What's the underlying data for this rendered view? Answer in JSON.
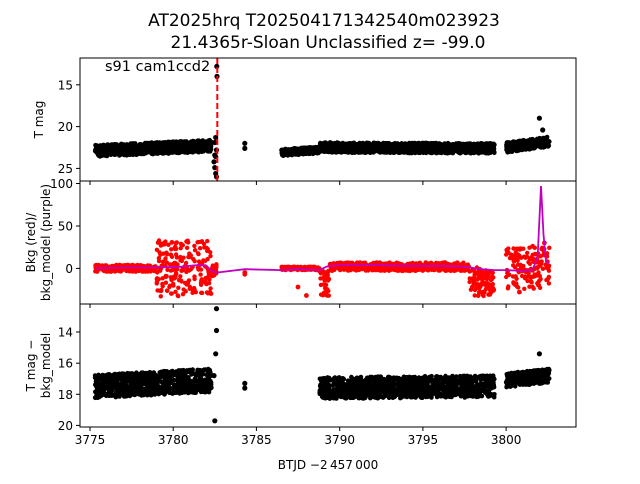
{
  "figure": {
    "title_line1": "AT2025hrq  T202504171342540m023923",
    "title_line2": "21.4365r-Sloan Unclassified z= -99.0",
    "xlabel": "BTJD −2 457 000",
    "x_ticks": [
      3775,
      3780,
      3785,
      3790,
      3795,
      3800
    ],
    "colors": {
      "data": "#000000",
      "background": "#ff0000",
      "model": "#bf00bf",
      "marker_line": "#ff0000"
    }
  },
  "chart_data": [
    {
      "type": "scatter",
      "panel": "top",
      "ylabel": "T mag",
      "y_inverted": true,
      "xlim": [
        3774.4,
        3804.2
      ],
      "ylim": [
        26.5,
        11.8
      ],
      "y_ticks": [
        15,
        20,
        25
      ],
      "annotation": "s91 cam1ccd2",
      "vertical_line_x": 3782.65,
      "segments": [
        {
          "x": [
            3775.3,
            3782.3
          ],
          "y_base": 22.9,
          "y_drift_end": 22.3,
          "y_spread": 1.4
        },
        {
          "x": [
            3786.5,
            3788.8
          ],
          "y_base": 23.1,
          "y_drift_end": 22.8,
          "y_spread": 0.8
        },
        {
          "x": [
            3788.8,
            3799.3
          ],
          "y_base": 22.5,
          "y_drift_end": 22.6,
          "y_spread": 1.2
        },
        {
          "x": [
            3800.0,
            3802.6
          ],
          "y_base": 22.5,
          "y_drift_end": 21.8,
          "y_spread": 1.2
        }
      ],
      "points": [
        {
          "x": 3782.5,
          "y": 21.9
        },
        {
          "x": 3782.55,
          "y": 21.3
        },
        {
          "x": 3782.6,
          "y": 22.8
        },
        {
          "x": 3782.45,
          "y": 24.2
        },
        {
          "x": 3782.5,
          "y": 24.9
        },
        {
          "x": 3782.55,
          "y": 25.6
        },
        {
          "x": 3782.6,
          "y": 26.0
        },
        {
          "x": 3782.5,
          "y": 23.4
        },
        {
          "x": 3782.55,
          "y": 23.6
        },
        {
          "x": 3782.62,
          "y": 12.8
        },
        {
          "x": 3782.63,
          "y": 14.0
        },
        {
          "x": 3784.3,
          "y": 22.0
        },
        {
          "x": 3784.3,
          "y": 22.6
        },
        {
          "x": 3802.0,
          "y": 19.0
        },
        {
          "x": 3802.2,
          "y": 20.4
        }
      ]
    },
    {
      "type": "scatter+line",
      "panel": "middle",
      "ylabel": "Bkg (red)/\nbkg_model (purple)",
      "xlim": [
        3774.4,
        3804.2
      ],
      "ylim": [
        -42,
        103
      ],
      "y_ticks": [
        0,
        50,
        100
      ],
      "series": [
        {
          "name": "Bkg",
          "marker": "dot",
          "segments": [
            {
              "x": [
                3775.3,
                3779.0
              ],
              "y_center": 0,
              "y_spread": 8
            },
            {
              "x": [
                3779.0,
                3782.3
              ],
              "y_center": 0,
              "y_spread": 66,
              "y_low": -36,
              "y_high": 34
            },
            {
              "x": [
                3782.3,
                3782.6
              ],
              "y_center": -2,
              "y_spread": 14
            },
            {
              "x": [
                3786.5,
                3788.8
              ],
              "y_center": 0,
              "y_spread": 4
            },
            {
              "x": [
                3788.8,
                3789.4
              ],
              "y_center": -18,
              "y_spread": 30
            },
            {
              "x": [
                3789.4,
                3797.8
              ],
              "y_center": 2,
              "y_spread": 10
            },
            {
              "x": [
                3797.8,
                3799.3
              ],
              "y_center": -16,
              "y_spread": 34
            },
            {
              "x": [
                3800.0,
                3802.6
              ],
              "y_center": 0,
              "y_spread": 50,
              "y_low": -36,
              "y_high": 30
            }
          ],
          "points": [
            {
              "x": 3784.3,
              "y": -7
            },
            {
              "x": 3784.3,
              "y": -5
            },
            {
              "x": 3787.5,
              "y": -22
            },
            {
              "x": 3788.0,
              "y": -32
            },
            {
              "x": 3800.8,
              "y": -28
            },
            {
              "x": 3800.6,
              "y": -18
            },
            {
              "x": 3801.6,
              "y": 26
            },
            {
              "x": 3802.3,
              "y": 30
            }
          ]
        },
        {
          "name": "bkg_model",
          "marker": "line",
          "x": [
            3775.3,
            3777.0,
            3779.0,
            3780.5,
            3781.5,
            3782.0,
            3782.3,
            3782.6,
            3784.3,
            3786.5,
            3787.5,
            3788.8,
            3789.2,
            3790.0,
            3792.0,
            3794.0,
            3796.0,
            3797.5,
            3798.5,
            3799.3,
            3800.0,
            3801.0,
            3801.6,
            3801.9,
            3802.1,
            3802.25,
            3802.4,
            3802.6
          ],
          "y": [
            0,
            1,
            1,
            2,
            4,
            3,
            -3,
            -5,
            -1,
            -2,
            -1,
            -2,
            2,
            4,
            4,
            3,
            3,
            2,
            -1,
            -2,
            -2,
            -3,
            -2,
            15,
            97,
            40,
            8,
            6
          ]
        }
      ]
    },
    {
      "type": "scatter",
      "panel": "bottom",
      "ylabel": "T mag −\nbkg_model",
      "y_inverted": true,
      "xlim": [
        3774.4,
        3804.2
      ],
      "ylim": [
        20.1,
        12.2
      ],
      "y_ticks": [
        14,
        16,
        18,
        20
      ],
      "segments": [
        {
          "x": [
            3775.3,
            3782.3
          ],
          "y_base": 17.5,
          "y_drift_end": 17.1,
          "y_spread": 1.5
        },
        {
          "x": [
            3788.8,
            3799.3
          ],
          "y_base": 17.6,
          "y_drift_end": 17.5,
          "y_spread": 1.4
        },
        {
          "x": [
            3800.0,
            3802.6
          ],
          "y_base": 17.1,
          "y_drift_end": 16.8,
          "y_spread": 0.9
        }
      ],
      "points": [
        {
          "x": 3782.6,
          "y": 12.5
        },
        {
          "x": 3782.6,
          "y": 13.9
        },
        {
          "x": 3782.55,
          "y": 15.4
        },
        {
          "x": 3782.45,
          "y": 16.8
        },
        {
          "x": 3782.5,
          "y": 19.7
        },
        {
          "x": 3784.3,
          "y": 17.3
        },
        {
          "x": 3784.3,
          "y": 17.6
        },
        {
          "x": 3800.8,
          "y": 17.0
        },
        {
          "x": 3801.2,
          "y": 17.1
        },
        {
          "x": 3802.0,
          "y": 15.4
        },
        {
          "x": 3802.3,
          "y": 16.6
        }
      ]
    }
  ]
}
